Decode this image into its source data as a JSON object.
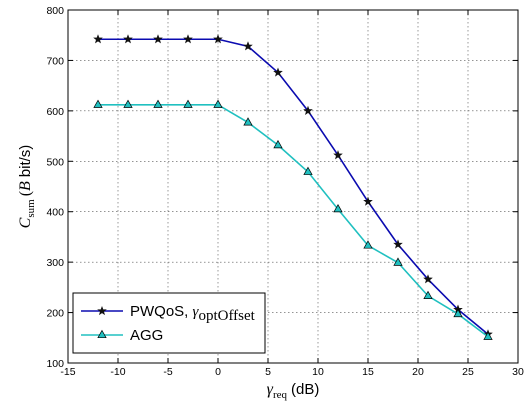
{
  "chart_data": {
    "type": "line",
    "xlabel": {
      "symbol": "γ",
      "sub": "req",
      "unit": "(dB)"
    },
    "ylabel": {
      "symbol": "C",
      "sub": "sum",
      "unit_open": "(",
      "unit_sym": "B",
      "unit_rest": "bit/s)"
    },
    "xlim": [
      -15,
      30
    ],
    "ylim": [
      100,
      800
    ],
    "xticks": [
      -15,
      -10,
      -5,
      0,
      5,
      10,
      15,
      20,
      25,
      30
    ],
    "yticks": [
      100,
      200,
      300,
      400,
      500,
      600,
      700,
      800
    ],
    "grid": true,
    "legend_position": "bottom-left",
    "series": [
      {
        "name": "PWQoS, ",
        "name_symbol": "γ",
        "name_sub": "optOffset",
        "color": "#0b0bb0",
        "marker": "star",
        "x": [
          -12,
          -9,
          -6,
          -3,
          0,
          3,
          6,
          9,
          12,
          15,
          18,
          21,
          24,
          27
        ],
        "y": [
          742,
          742,
          742,
          742,
          742,
          728,
          676,
          600,
          512,
          420,
          335,
          266,
          206,
          157
        ]
      },
      {
        "name": "AGG",
        "color": "#20c0c0",
        "marker": "triangle",
        "x": [
          -12,
          -9,
          -6,
          -3,
          0,
          3,
          6,
          9,
          12,
          15,
          18,
          21,
          24,
          27
        ],
        "y": [
          612,
          612,
          612,
          612,
          612,
          577,
          532,
          479,
          405,
          333,
          299,
          233,
          197,
          152
        ]
      }
    ]
  }
}
